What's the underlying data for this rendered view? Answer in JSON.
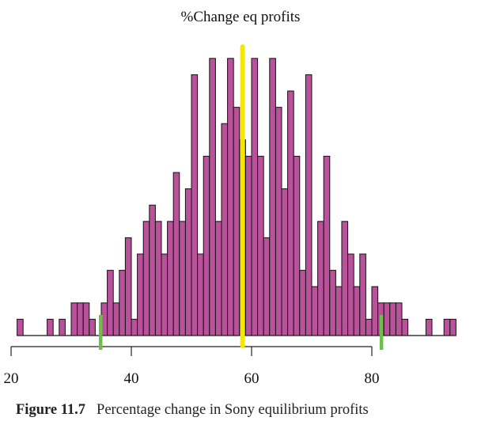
{
  "chart_data": {
    "type": "bar",
    "title": "%Change eq profits",
    "xlabel": "",
    "ylabel": "",
    "bin_width": 1,
    "bin_starts": [
      21,
      22,
      23,
      24,
      25,
      26,
      27,
      28,
      29,
      30,
      31,
      32,
      33,
      34,
      35,
      36,
      37,
      38,
      39,
      40,
      41,
      42,
      43,
      44,
      45,
      46,
      47,
      48,
      49,
      50,
      51,
      52,
      53,
      54,
      55,
      56,
      57,
      58,
      59,
      60,
      61,
      62,
      63,
      64,
      65,
      66,
      67,
      68,
      69,
      70,
      71,
      72,
      73,
      74,
      75,
      76,
      77,
      78,
      79,
      80,
      81,
      82,
      83,
      84,
      85,
      86,
      87,
      88,
      89,
      90,
      91,
      92,
      93
    ],
    "counts": [
      1,
      0,
      0,
      0,
      0,
      1,
      0,
      1,
      0,
      2,
      2,
      2,
      1,
      0,
      2,
      4,
      2,
      4,
      6,
      1,
      5,
      7,
      8,
      7,
      5,
      7,
      10,
      7,
      9,
      16,
      5,
      11,
      17,
      7,
      13,
      17,
      14,
      12,
      11,
      17,
      11,
      6,
      17,
      14,
      9,
      15,
      11,
      4,
      16,
      3,
      7,
      11,
      4,
      3,
      7,
      5,
      3,
      5,
      1,
      3,
      2,
      2,
      2,
      2,
      1,
      0,
      0,
      0,
      1,
      0,
      0,
      1,
      1
    ],
    "xlim": [
      20,
      95
    ],
    "xticks": [
      "20",
      "40",
      "60",
      "80"
    ],
    "xtick_values": [
      20,
      40,
      60,
      80
    ],
    "ylim": [
      0,
      18
    ],
    "grid": false,
    "bar_color": "#b9529b",
    "edge_color": "#111111",
    "reference_lines": [
      {
        "value": 58.5,
        "color": "#f5e60a",
        "role": "center"
      },
      {
        "value": 34.9,
        "color": "#6cc04a",
        "role": "lower"
      },
      {
        "value": 81.6,
        "color": "#6cc04a",
        "role": "upper"
      }
    ]
  },
  "caption": {
    "label": "Figure 11.7",
    "text": "Percentage change in Sony equilibrium profits"
  }
}
